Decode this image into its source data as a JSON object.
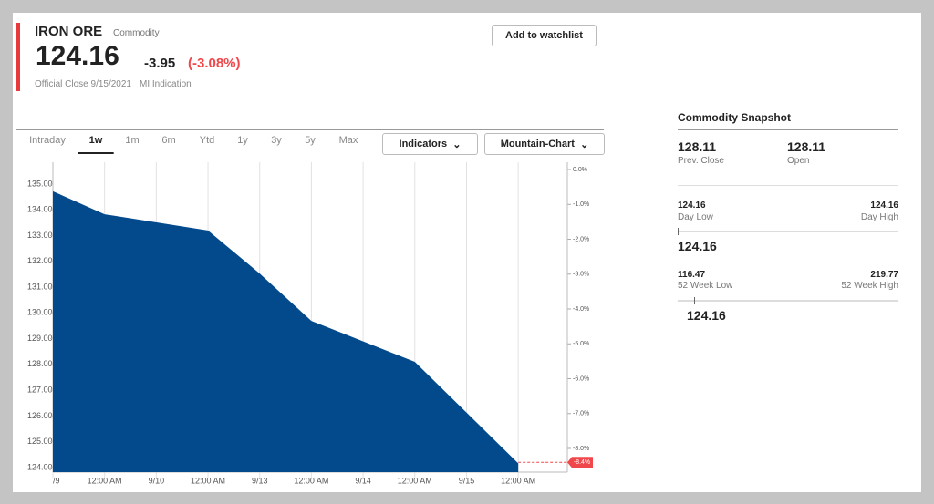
{
  "header": {
    "title": "IRON ORE",
    "subtitle": "Commodity",
    "price": 124.16,
    "change": -3.95,
    "change_pct": "(-3.08%)",
    "close_note": "Official Close 9/15/2021",
    "indication": "MI Indication",
    "button": "Add to watchlist"
  },
  "tabs": [
    "Intraday",
    "1w",
    "1m",
    "6m",
    "Ytd",
    "1y",
    "3y",
    "5y",
    "Max"
  ],
  "active_tab": 1,
  "dropdowns": [
    "Indicators",
    "Mountain-Chart"
  ],
  "chart_data": {
    "type": "area",
    "series": [
      {
        "name": "IRON ORE",
        "color": "#034a8c",
        "x": [
          0,
          1,
          3,
          4,
          5,
          7,
          9
        ],
        "values": [
          134.72,
          133.83,
          133.2,
          131.53,
          129.69,
          128.1,
          124.16
        ]
      }
    ],
    "xlim": [
      0,
      9.95
    ],
    "xticks": [
      {
        "value": 0,
        "label": "/9"
      },
      {
        "value": 1,
        "label": "12:00 AM"
      },
      {
        "value": 2,
        "label": "9/10"
      },
      {
        "value": 3,
        "label": "12:00 AM"
      },
      {
        "value": 4,
        "label": "9/13"
      },
      {
        "value": 5,
        "label": "12:00 AM"
      },
      {
        "value": 6,
        "label": "9/14"
      },
      {
        "value": 7,
        "label": "12:00 AM"
      },
      {
        "value": 8,
        "label": "9/15"
      },
      {
        "value": 9,
        "label": "12:00 AM"
      }
    ],
    "ylim": [
      123.82,
      135.85
    ],
    "yticks": [
      {
        "value": 124,
        "label": "124.00"
      },
      {
        "value": 125,
        "label": "125.00"
      },
      {
        "value": 126,
        "label": "126.00"
      },
      {
        "value": 127,
        "label": "127.00"
      },
      {
        "value": 128,
        "label": "128.00"
      },
      {
        "value": 129,
        "label": "129.00"
      },
      {
        "value": 130,
        "label": "130.00"
      },
      {
        "value": 131,
        "label": "131.00"
      },
      {
        "value": 132,
        "label": "132.00"
      },
      {
        "value": 133,
        "label": "133.00"
      },
      {
        "value": 134,
        "label": "134.00"
      },
      {
        "value": 135,
        "label": "135.00"
      }
    ],
    "y2lim": [
      -8.68,
      0.21
    ],
    "y2ticks": [
      {
        "value": 0,
        "label": "0.0%"
      },
      {
        "value": -1,
        "label": "-1.0%"
      },
      {
        "value": -2,
        "label": "-2.0%"
      },
      {
        "value": -3,
        "label": "-3.0%"
      },
      {
        "value": -4,
        "label": "-4.0%"
      },
      {
        "value": -5,
        "label": "-5.0%"
      },
      {
        "value": -6,
        "label": "-6.0%"
      },
      {
        "value": -7,
        "label": "-7.0%"
      },
      {
        "value": -8,
        "label": "-8.0%"
      }
    ],
    "annotation": {
      "value": -8.4,
      "label": "-8.4%",
      "color": "#f0474b"
    },
    "grid": true
  },
  "snapshot": {
    "title": "Commodity Snapshot",
    "prev_close": {
      "value": 128.11,
      "label": "Prev. Close"
    },
    "open": {
      "value": 128.11,
      "label": "Open"
    },
    "day_range": {
      "low": 124.16,
      "low_label": "Day Low",
      "high": 124.16,
      "high_label": "Day High",
      "current": 124.16
    },
    "week52": {
      "low": 116.47,
      "low_label": "52 Week Low",
      "high": 219.77,
      "high_label": "52 Week High",
      "current": 124.16
    }
  }
}
